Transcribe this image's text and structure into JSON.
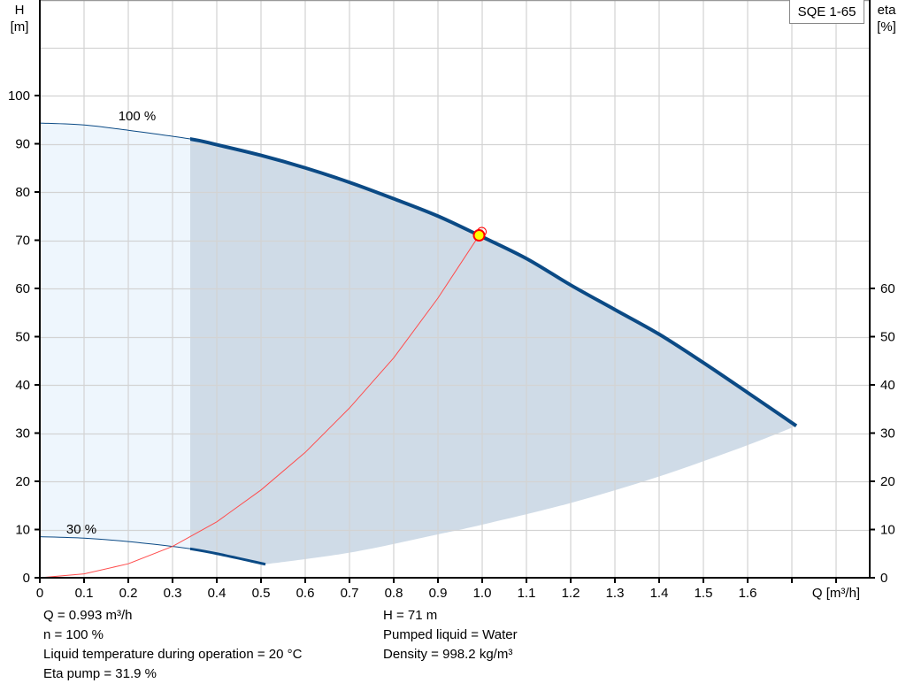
{
  "model": "SQE 1-65",
  "left_axis": {
    "title": "H",
    "unit": "[m]"
  },
  "right_axis": {
    "title": "eta",
    "unit": "[%]"
  },
  "x_axis": {
    "title": "Q [m³/h]"
  },
  "curve_labels": {
    "full_speed": "100 %",
    "min_speed": "30 %"
  },
  "info": {
    "left": [
      "Q = 0.993 m³/h",
      "n = 100 %",
      "Liquid temperature during operation = 20 °C",
      "Eta pump = 31.9 %"
    ],
    "right": [
      "H = 71 m",
      "Pumped liquid = Water",
      "Density = 998.2 kg/m³"
    ]
  },
  "colors": {
    "curve": "#0b4a85",
    "area_dark": "#cfdbe7",
    "area_light": "#eef6fd",
    "system_curve": "#ff4d4d",
    "operating_point_fill": "#ffff00",
    "operating_point_stroke": "#ff0000",
    "grid": "#d3d3d3"
  },
  "chart_data": {
    "type": "line",
    "title": "SQE 1-65",
    "xlabel": "Q [m³/h]",
    "ylabel": "H [m]",
    "y2label": "eta [%]",
    "xlim": [
      0,
      1.87
    ],
    "ylim": [
      0,
      120
    ],
    "y2lim": [
      0,
      120
    ],
    "grid": true,
    "x_ticks": [
      "0",
      "0.1",
      "0.2",
      "0.3",
      "0.4",
      "0.5",
      "0.6",
      "0.7",
      "0.8",
      "0.9",
      "1.0",
      "1.1",
      "1.2",
      "1.3",
      "1.4",
      "1.5",
      "1.6"
    ],
    "y_ticks": [
      "0",
      "10",
      "20",
      "30",
      "40",
      "50",
      "60",
      "70",
      "80",
      "90",
      "100"
    ],
    "y2_ticks": [
      "0",
      "10",
      "20",
      "30",
      "40",
      "50",
      "60"
    ],
    "series": [
      {
        "name": "100 % speed (QH curve)",
        "x": [
          0,
          0.1,
          0.2,
          0.34,
          0.4,
          0.5,
          0.6,
          0.7,
          0.8,
          0.9,
          0.993,
          1.1,
          1.2,
          1.3,
          1.4,
          1.5,
          1.6,
          1.71
        ],
        "y": [
          94.3,
          93.9,
          92.8,
          91.0,
          89.8,
          87.6,
          85.0,
          82.0,
          78.6,
          75.0,
          71.0,
          66.2,
          60.7,
          55.6,
          50.5,
          44.6,
          38.4,
          31.5
        ]
      },
      {
        "name": "30 % speed (QH curve)",
        "x": [
          0,
          0.1,
          0.2,
          0.3,
          0.34,
          0.4,
          0.51
        ],
        "y": [
          8.5,
          8.2,
          7.5,
          6.5,
          6.0,
          5.0,
          2.8
        ]
      },
      {
        "name": "System curve",
        "x": [
          0,
          0.1,
          0.2,
          0.3,
          0.4,
          0.5,
          0.6,
          0.7,
          0.8,
          0.9,
          0.993
        ],
        "y": [
          0,
          0.8,
          2.9,
          6.5,
          11.6,
          18.2,
          26.0,
          35.2,
          45.6,
          58.0,
          71.0
        ]
      },
      {
        "name": "Lower operating boundary",
        "x": [
          0.51,
          0.7,
          0.9,
          1.0,
          1.2,
          1.4,
          1.6,
          1.71
        ],
        "y": [
          2.8,
          5.2,
          9.0,
          11.0,
          15.5,
          21.0,
          27.5,
          31.5
        ]
      }
    ],
    "operating_point": {
      "Q": 0.993,
      "H": 71,
      "n": "100 %",
      "eta_pump": 31.9
    },
    "annotations": [
      "100 %",
      "30 %"
    ]
  }
}
